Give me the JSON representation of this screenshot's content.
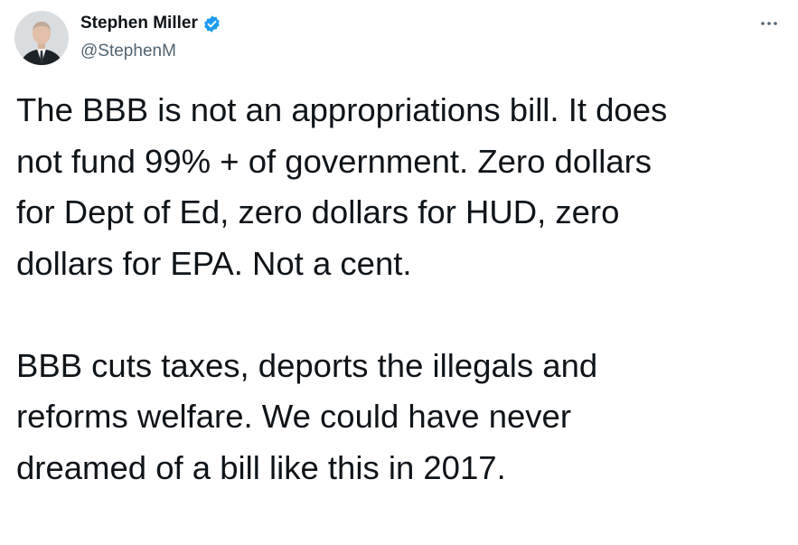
{
  "author": {
    "name": "Stephen Miller",
    "handle": "@StephenM"
  },
  "tweet": {
    "paragraphs": [
      [
        "The BBB is not an appropriations bill. It does",
        "not fund 99% + of government. Zero dollars",
        "for Dept of Ed, zero dollars for HUD, zero",
        "dollars for EPA. Not a cent."
      ],
      [
        "BBB cuts taxes, deports the illegals and",
        "reforms welfare. We could have never",
        "dreamed of a bill like this in 2017."
      ]
    ]
  }
}
